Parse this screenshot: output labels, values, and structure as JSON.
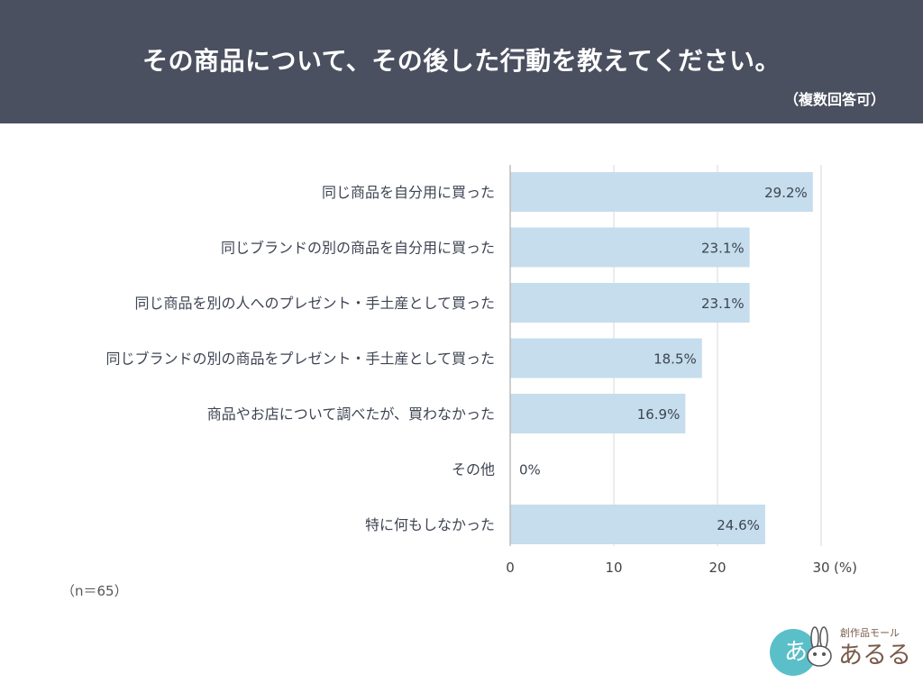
{
  "header": {
    "title": "その商品について、その後した行動を教えてください。",
    "subtitle": "（複数回答可）"
  },
  "note": "（n＝65）",
  "colors": {
    "header_bg": "#4b5060",
    "bar": "#c5ddec",
    "bar_label": "#3e4452",
    "category_label": "#3e4452",
    "gridline": "#d8d8d8",
    "axis": "#bdbdbd"
  },
  "chart_data": {
    "type": "bar",
    "orientation": "horizontal",
    "categories": [
      "同じ商品を自分用に買った",
      "同じブランドの別の商品を自分用に買った",
      "同じ商品を別の人へのプレゼント・手土産として買った",
      "同じブランドの別の商品をプレゼント・手土産として買った",
      "商品やお店について調べたが、買わなかった",
      "その他",
      "特に何もしなかった"
    ],
    "values": [
      29.2,
      23.1,
      23.1,
      18.5,
      16.9,
      0,
      24.6
    ],
    "value_labels": [
      "29.2%",
      "23.1%",
      "23.1%",
      "18.5%",
      "16.9%",
      "0%",
      "24.6%"
    ],
    "xticks": [
      0,
      10,
      20,
      30
    ],
    "xlim": [
      0,
      30
    ],
    "xlabel": "(%)",
    "grid": true
  },
  "logo": {
    "tagline": "創作品モール",
    "name": "あるる",
    "badge_glyph": "あ"
  }
}
